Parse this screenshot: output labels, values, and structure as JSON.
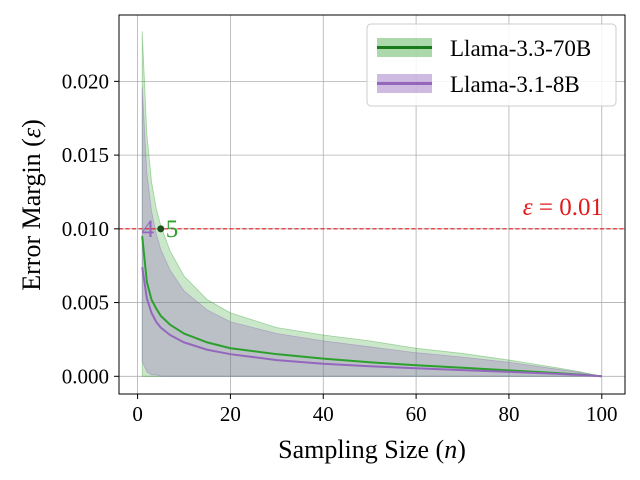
{
  "chart_data": {
    "type": "line",
    "title": "",
    "xlabel_text": "Sampling Size (",
    "xlabel_var": "n",
    "xlabel_end": ")",
    "ylabel_text": "Error Margin (",
    "ylabel_var": "ε",
    "ylabel_end": ")",
    "xlim": [
      -4,
      105
    ],
    "ylim": [
      -0.0012,
      0.0245
    ],
    "xticks": [
      0,
      20,
      40,
      60,
      80,
      100
    ],
    "xtick_labels": [
      "0",
      "20",
      "40",
      "60",
      "80",
      "100"
    ],
    "yticks": [
      0.0,
      0.005,
      0.01,
      0.015,
      0.02
    ],
    "ytick_labels": [
      "0.000",
      "0.005",
      "0.010",
      "0.015",
      "0.020"
    ],
    "grid": true,
    "legend_position": "top-right",
    "threshold": {
      "value": 0.01,
      "color": "#e31a1c",
      "label_var": "ε",
      "label_rest": " = 0.01"
    },
    "series": [
      {
        "name": "Llama-3.3-70B",
        "color": "#2ca02c",
        "legend_line_color": "#1a7a1a",
        "band_color": "#2ca02c",
        "band_opacity": 0.25,
        "x": [
          1,
          2,
          3,
          4,
          5,
          7,
          10,
          15,
          20,
          30,
          40,
          50,
          60,
          70,
          80,
          90,
          95,
          100
        ],
        "mean": [
          0.0095,
          0.0064,
          0.0052,
          0.0046,
          0.0041,
          0.0035,
          0.0029,
          0.0023,
          0.0019,
          0.0015,
          0.0012,
          0.00095,
          0.00075,
          0.00058,
          0.0004,
          0.00022,
          0.00012,
          0.0
        ],
        "upper": [
          0.0234,
          0.0164,
          0.0132,
          0.0114,
          0.0102,
          0.0085,
          0.0068,
          0.0052,
          0.0043,
          0.0033,
          0.0028,
          0.0024,
          0.0019,
          0.00155,
          0.0011,
          0.0006,
          0.00032,
          0.0
        ],
        "lower": [
          0.0,
          0.0,
          0.0,
          0.0,
          0.0,
          0.0,
          0.0,
          0.0,
          0.0,
          0.0,
          0.0,
          0.0,
          0.0,
          0.0,
          0.0,
          0.0,
          0.0,
          0.0
        ],
        "crossing_n": 5,
        "crossing_label": "5"
      },
      {
        "name": "Llama-3.1-8B",
        "color": "#9467bd",
        "legend_line_color": "#9467bd",
        "band_color": "#9467bd",
        "band_opacity": 0.3,
        "x": [
          1,
          2,
          3,
          4,
          5,
          7,
          10,
          15,
          20,
          30,
          40,
          50,
          60,
          70,
          80,
          90,
          95,
          100
        ],
        "mean": [
          0.0074,
          0.0053,
          0.0043,
          0.0037,
          0.0033,
          0.0028,
          0.0023,
          0.0018,
          0.0015,
          0.0011,
          0.00085,
          0.00068,
          0.00055,
          0.00042,
          0.0003,
          0.00017,
          0.0001,
          0.0
        ],
        "upper": [
          0.0196,
          0.0138,
          0.0112,
          0.0097,
          0.0086,
          0.0072,
          0.0058,
          0.0045,
          0.0037,
          0.0029,
          0.0024,
          0.002,
          0.0016,
          0.0013,
          0.00095,
          0.0005,
          0.00028,
          0.0
        ],
        "lower": [
          0.001,
          0.0003,
          0.0001,
          0.0001,
          0.0,
          0.0,
          0.0,
          0.0,
          0.0,
          0.0,
          0.0,
          0.0,
          0.0,
          0.0,
          0.0,
          0.0,
          0.0,
          0.0
        ],
        "crossing_n": 4,
        "crossing_label": "4"
      }
    ]
  }
}
